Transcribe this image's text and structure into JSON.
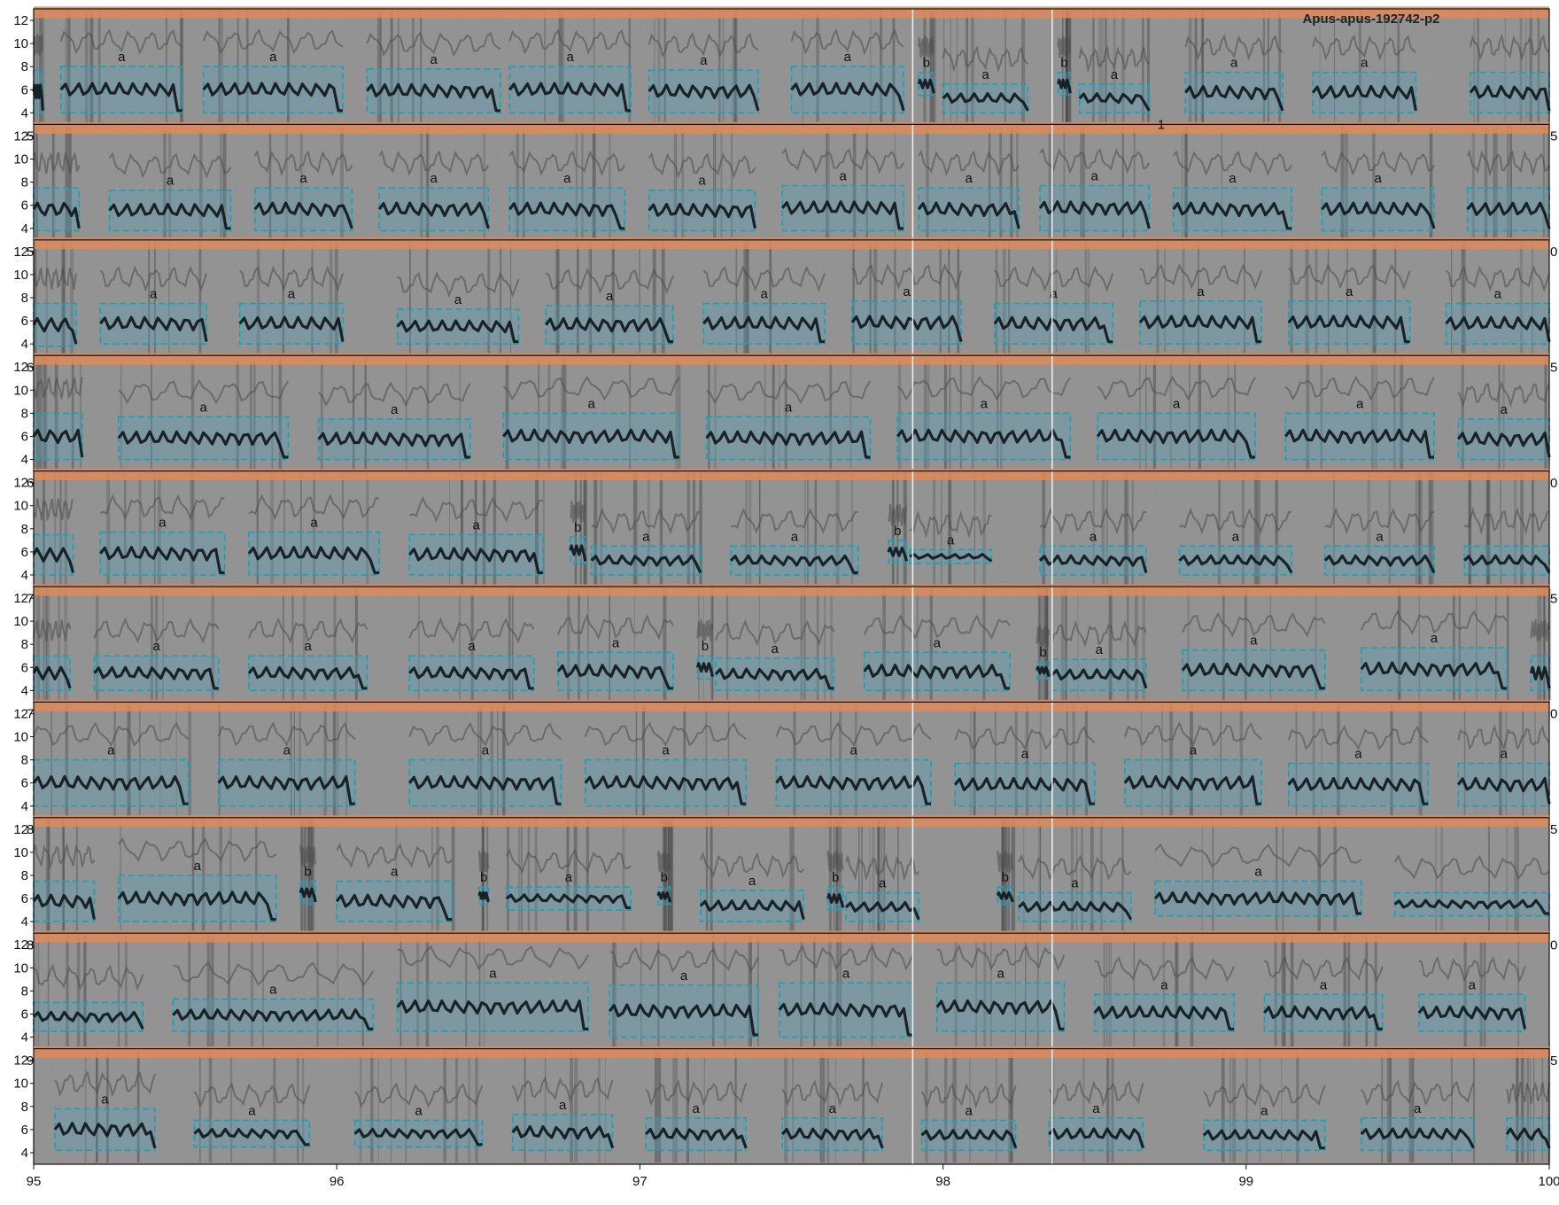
{
  "chart_data": {
    "type": "heatmap",
    "title": "Apus-apus-192742-p2",
    "x": {
      "label": "",
      "lim": [
        95,
        100
      ],
      "ticks": [
        95,
        96,
        97,
        98,
        99,
        100
      ]
    },
    "y": {
      "label": "",
      "lim": [
        3,
        13
      ],
      "ticks": [
        4,
        6,
        8,
        10,
        12
      ]
    },
    "rows": 10,
    "band": {
      "y_from": 12.2,
      "y_to": 13.2,
      "color": "#e08a58"
    },
    "colors": {
      "background": "#8f8f8f",
      "box": "#1aa0b4",
      "box_fill": "#49a7c4",
      "trace": "#0e1518",
      "band": "#e08a58"
    },
    "vlines": [
      97.9,
      98.36
    ],
    "row_edge_labels": [
      {
        "row": 1,
        "left": "5",
        "right": "5"
      },
      {
        "row": 2,
        "left": "5",
        "right": "0"
      },
      {
        "row": 3,
        "left": "6",
        "right": "5"
      },
      {
        "row": 4,
        "left": "6",
        "right": "0"
      },
      {
        "row": 5,
        "left": "7",
        "right": "5"
      },
      {
        "row": 6,
        "left": "7",
        "right": "0"
      },
      {
        "row": 7,
        "left": "8",
        "right": "5"
      },
      {
        "row": 8,
        "left": "8",
        "right": "0"
      },
      {
        "row": 9,
        "left": "9",
        "right": "5"
      }
    ],
    "marker": {
      "row": 1,
      "x": 98.72,
      "text": "1"
    },
    "segments": [
      {
        "row": 0,
        "label": "",
        "x0": 95.0,
        "x1": 95.03,
        "y0": 4.0,
        "y1": 7.7
      },
      {
        "row": 0,
        "label": "a",
        "x0": 95.09,
        "x1": 95.49,
        "y0": 4.0,
        "y1": 8.0
      },
      {
        "row": 0,
        "label": "a",
        "x0": 95.56,
        "x1": 96.02,
        "y0": 4.0,
        "y1": 8.0
      },
      {
        "row": 0,
        "label": "a",
        "x0": 96.1,
        "x1": 96.54,
        "y0": 4.0,
        "y1": 7.8
      },
      {
        "row": 0,
        "label": "a",
        "x0": 96.57,
        "x1": 96.97,
        "y0": 4.0,
        "y1": 8.0
      },
      {
        "row": 0,
        "label": "a",
        "x0": 97.03,
        "x1": 97.39,
        "y0": 4.0,
        "y1": 7.7
      },
      {
        "row": 0,
        "label": "a",
        "x0": 97.5,
        "x1": 97.87,
        "y0": 4.0,
        "y1": 8.0
      },
      {
        "row": 0,
        "label": "b",
        "x0": 97.92,
        "x1": 97.97,
        "y0": 5.5,
        "y1": 7.5
      },
      {
        "row": 0,
        "label": "a",
        "x0": 98.0,
        "x1": 98.28,
        "y0": 4.0,
        "y1": 6.5
      },
      {
        "row": 0,
        "label": "b",
        "x0": 98.38,
        "x1": 98.42,
        "y0": 5.5,
        "y1": 7.5
      },
      {
        "row": 0,
        "label": "a",
        "x0": 98.45,
        "x1": 98.68,
        "y0": 4.0,
        "y1": 6.5
      },
      {
        "row": 0,
        "label": "a",
        "x0": 98.8,
        "x1": 99.12,
        "y0": 4.0,
        "y1": 7.5
      },
      {
        "row": 0,
        "label": "a",
        "x0": 99.22,
        "x1": 99.56,
        "y0": 4.0,
        "y1": 7.5
      },
      {
        "row": 0,
        "label": "",
        "x0": 99.74,
        "x1": 100.0,
        "y0": 4.0,
        "y1": 7.5
      },
      {
        "row": 1,
        "label": "",
        "x0": 95.0,
        "x1": 95.15,
        "y0": 3.8,
        "y1": 7.5
      },
      {
        "row": 1,
        "label": "a",
        "x0": 95.25,
        "x1": 95.65,
        "y0": 3.8,
        "y1": 7.3
      },
      {
        "row": 1,
        "label": "a",
        "x0": 95.73,
        "x1": 96.05,
        "y0": 3.8,
        "y1": 7.5
      },
      {
        "row": 1,
        "label": "a",
        "x0": 96.14,
        "x1": 96.5,
        "y0": 3.8,
        "y1": 7.5
      },
      {
        "row": 1,
        "label": "a",
        "x0": 96.57,
        "x1": 96.95,
        "y0": 3.8,
        "y1": 7.5
      },
      {
        "row": 1,
        "label": "a",
        "x0": 97.03,
        "x1": 97.38,
        "y0": 3.8,
        "y1": 7.3
      },
      {
        "row": 1,
        "label": "a",
        "x0": 97.47,
        "x1": 97.87,
        "y0": 3.8,
        "y1": 7.7
      },
      {
        "row": 1,
        "label": "a",
        "x0": 97.92,
        "x1": 98.25,
        "y0": 3.8,
        "y1": 7.5
      },
      {
        "row": 1,
        "label": "a",
        "x0": 98.32,
        "x1": 98.68,
        "y0": 3.8,
        "y1": 7.7
      },
      {
        "row": 1,
        "label": "a",
        "x0": 98.76,
        "x1": 99.15,
        "y0": 3.8,
        "y1": 7.5
      },
      {
        "row": 1,
        "label": "a",
        "x0": 99.25,
        "x1": 99.62,
        "y0": 3.8,
        "y1": 7.5
      },
      {
        "row": 1,
        "label": "",
        "x0": 99.73,
        "x1": 100.0,
        "y0": 3.8,
        "y1": 7.5
      },
      {
        "row": 2,
        "label": "",
        "x0": 95.0,
        "x1": 95.14,
        "y0": 3.8,
        "y1": 7.5
      },
      {
        "row": 2,
        "label": "a",
        "x0": 95.22,
        "x1": 95.57,
        "y0": 4.0,
        "y1": 7.5
      },
      {
        "row": 2,
        "label": "a",
        "x0": 95.68,
        "x1": 96.02,
        "y0": 4.0,
        "y1": 7.5
      },
      {
        "row": 2,
        "label": "a",
        "x0": 96.2,
        "x1": 96.6,
        "y0": 4.0,
        "y1": 7.0
      },
      {
        "row": 2,
        "label": "a",
        "x0": 96.69,
        "x1": 97.11,
        "y0": 4.0,
        "y1": 7.3
      },
      {
        "row": 2,
        "label": "a",
        "x0": 97.21,
        "x1": 97.61,
        "y0": 4.0,
        "y1": 7.5
      },
      {
        "row": 2,
        "label": "a",
        "x0": 97.7,
        "x1": 98.06,
        "y0": 4.0,
        "y1": 7.7
      },
      {
        "row": 2,
        "label": "a",
        "x0": 98.17,
        "x1": 98.56,
        "y0": 4.0,
        "y1": 7.5
      },
      {
        "row": 2,
        "label": "a",
        "x0": 98.65,
        "x1": 99.05,
        "y0": 4.0,
        "y1": 7.7
      },
      {
        "row": 2,
        "label": "a",
        "x0": 99.14,
        "x1": 99.54,
        "y0": 4.0,
        "y1": 7.7
      },
      {
        "row": 2,
        "label": "a",
        "x0": 99.66,
        "x1": 100.0,
        "y0": 4.0,
        "y1": 7.5
      },
      {
        "row": 3,
        "label": "",
        "x0": 95.0,
        "x1": 95.16,
        "y0": 4.0,
        "y1": 8.0
      },
      {
        "row": 3,
        "label": "a",
        "x0": 95.28,
        "x1": 95.84,
        "y0": 4.0,
        "y1": 7.7
      },
      {
        "row": 3,
        "label": "a",
        "x0": 95.94,
        "x1": 96.44,
        "y0": 4.0,
        "y1": 7.5
      },
      {
        "row": 3,
        "label": "a",
        "x0": 96.55,
        "x1": 97.13,
        "y0": 4.0,
        "y1": 8.0
      },
      {
        "row": 3,
        "label": "a",
        "x0": 97.22,
        "x1": 97.76,
        "y0": 4.0,
        "y1": 7.7
      },
      {
        "row": 3,
        "label": "a",
        "x0": 97.85,
        "x1": 98.42,
        "y0": 4.0,
        "y1": 8.0
      },
      {
        "row": 3,
        "label": "a",
        "x0": 98.51,
        "x1": 99.03,
        "y0": 4.0,
        "y1": 8.0
      },
      {
        "row": 3,
        "label": "a",
        "x0": 99.13,
        "x1": 99.62,
        "y0": 4.0,
        "y1": 8.0
      },
      {
        "row": 3,
        "label": "a",
        "x0": 99.7,
        "x1": 100.0,
        "y0": 4.0,
        "y1": 7.5
      },
      {
        "row": 4,
        "label": "",
        "x0": 95.0,
        "x1": 95.13,
        "y0": 4.0,
        "y1": 7.5
      },
      {
        "row": 4,
        "label": "a",
        "x0": 95.22,
        "x1": 95.63,
        "y0": 4.0,
        "y1": 7.7
      },
      {
        "row": 4,
        "label": "a",
        "x0": 95.71,
        "x1": 96.14,
        "y0": 4.0,
        "y1": 7.7
      },
      {
        "row": 4,
        "label": "a",
        "x0": 96.24,
        "x1": 96.68,
        "y0": 4.0,
        "y1": 7.5
      },
      {
        "row": 4,
        "label": "b",
        "x0": 96.77,
        "x1": 96.82,
        "y0": 5.0,
        "y1": 7.3
      },
      {
        "row": 4,
        "label": "a",
        "x0": 96.84,
        "x1": 97.2,
        "y0": 4.0,
        "y1": 6.5
      },
      {
        "row": 4,
        "label": "a",
        "x0": 97.3,
        "x1": 97.72,
        "y0": 4.0,
        "y1": 6.5
      },
      {
        "row": 4,
        "label": "b",
        "x0": 97.82,
        "x1": 97.88,
        "y0": 5.0,
        "y1": 7.0
      },
      {
        "row": 4,
        "label": "a",
        "x0": 97.89,
        "x1": 98.16,
        "y0": 5.0,
        "y1": 6.2
      },
      {
        "row": 4,
        "label": "a",
        "x0": 98.32,
        "x1": 98.67,
        "y0": 4.0,
        "y1": 6.5
      },
      {
        "row": 4,
        "label": "a",
        "x0": 98.78,
        "x1": 99.15,
        "y0": 4.0,
        "y1": 6.5
      },
      {
        "row": 4,
        "label": "a",
        "x0": 99.26,
        "x1": 99.62,
        "y0": 4.0,
        "y1": 6.5
      },
      {
        "row": 4,
        "label": "",
        "x0": 99.72,
        "x1": 100.0,
        "y0": 4.0,
        "y1": 6.5
      },
      {
        "row": 5,
        "label": "",
        "x0": 95.0,
        "x1": 95.12,
        "y0": 4.0,
        "y1": 7.0
      },
      {
        "row": 5,
        "label": "a",
        "x0": 95.2,
        "x1": 95.61,
        "y0": 4.0,
        "y1": 7.0
      },
      {
        "row": 5,
        "label": "a",
        "x0": 95.71,
        "x1": 96.1,
        "y0": 4.0,
        "y1": 7.0
      },
      {
        "row": 5,
        "label": "a",
        "x0": 96.24,
        "x1": 96.65,
        "y0": 4.0,
        "y1": 7.0
      },
      {
        "row": 5,
        "label": "a",
        "x0": 96.73,
        "x1": 97.11,
        "y0": 4.0,
        "y1": 7.3
      },
      {
        "row": 5,
        "label": "b",
        "x0": 97.19,
        "x1": 97.24,
        "y0": 5.0,
        "y1": 7.0
      },
      {
        "row": 5,
        "label": "a",
        "x0": 97.25,
        "x1": 97.64,
        "y0": 4.0,
        "y1": 6.8
      },
      {
        "row": 5,
        "label": "a",
        "x0": 97.74,
        "x1": 98.22,
        "y0": 4.0,
        "y1": 7.3
      },
      {
        "row": 5,
        "label": "b",
        "x0": 98.31,
        "x1": 98.35,
        "y0": 5.0,
        "y1": 6.5
      },
      {
        "row": 5,
        "label": "a",
        "x0": 98.36,
        "x1": 98.67,
        "y0": 4.0,
        "y1": 6.7
      },
      {
        "row": 5,
        "label": "a",
        "x0": 98.79,
        "x1": 99.26,
        "y0": 4.0,
        "y1": 7.5
      },
      {
        "row": 5,
        "label": "a",
        "x0": 99.38,
        "x1": 99.86,
        "y0": 4.0,
        "y1": 7.7
      },
      {
        "row": 5,
        "label": "",
        "x0": 99.94,
        "x1": 100.0,
        "y0": 4.0,
        "y1": 7.0
      },
      {
        "row": 6,
        "label": "a",
        "x0": 95.0,
        "x1": 95.51,
        "y0": 4.0,
        "y1": 8.0
      },
      {
        "row": 6,
        "label": "a",
        "x0": 95.61,
        "x1": 96.06,
        "y0": 4.0,
        "y1": 8.0
      },
      {
        "row": 6,
        "label": "a",
        "x0": 96.24,
        "x1": 96.74,
        "y0": 4.0,
        "y1": 8.0
      },
      {
        "row": 6,
        "label": "a",
        "x0": 96.82,
        "x1": 97.35,
        "y0": 4.0,
        "y1": 8.0
      },
      {
        "row": 6,
        "label": "a",
        "x0": 97.45,
        "x1": 97.96,
        "y0": 4.0,
        "y1": 8.0
      },
      {
        "row": 6,
        "label": "a",
        "x0": 98.04,
        "x1": 98.5,
        "y0": 4.0,
        "y1": 7.7
      },
      {
        "row": 6,
        "label": "a",
        "x0": 98.6,
        "x1": 99.05,
        "y0": 4.0,
        "y1": 8.0
      },
      {
        "row": 6,
        "label": "a",
        "x0": 99.14,
        "x1": 99.6,
        "y0": 4.0,
        "y1": 7.7
      },
      {
        "row": 6,
        "label": "a",
        "x0": 99.7,
        "x1": 100.0,
        "y0": 4.0,
        "y1": 7.7
      },
      {
        "row": 7,
        "label": "",
        "x0": 95.0,
        "x1": 95.2,
        "y0": 4.0,
        "y1": 7.5
      },
      {
        "row": 7,
        "label": "a",
        "x0": 95.28,
        "x1": 95.8,
        "y0": 4.0,
        "y1": 8.0
      },
      {
        "row": 7,
        "label": "b",
        "x0": 95.88,
        "x1": 95.93,
        "y0": 5.5,
        "y1": 7.5
      },
      {
        "row": 7,
        "label": "a",
        "x0": 96.0,
        "x1": 96.38,
        "y0": 4.0,
        "y1": 7.5
      },
      {
        "row": 7,
        "label": "b",
        "x0": 96.47,
        "x1": 96.5,
        "y0": 5.5,
        "y1": 7.0
      },
      {
        "row": 7,
        "label": "a",
        "x0": 96.56,
        "x1": 96.97,
        "y0": 5.0,
        "y1": 7.0
      },
      {
        "row": 7,
        "label": "b",
        "x0": 97.06,
        "x1": 97.1,
        "y0": 5.5,
        "y1": 7.0
      },
      {
        "row": 7,
        "label": "a",
        "x0": 97.2,
        "x1": 97.54,
        "y0": 4.0,
        "y1": 6.7
      },
      {
        "row": 7,
        "label": "b",
        "x0": 97.62,
        "x1": 97.67,
        "y0": 5.0,
        "y1": 7.0
      },
      {
        "row": 7,
        "label": "a",
        "x0": 97.68,
        "x1": 97.92,
        "y0": 4.0,
        "y1": 6.5
      },
      {
        "row": 7,
        "label": "b",
        "x0": 98.18,
        "x1": 98.23,
        "y0": 5.5,
        "y1": 7.0
      },
      {
        "row": 7,
        "label": "a",
        "x0": 98.25,
        "x1": 98.62,
        "y0": 4.0,
        "y1": 6.5
      },
      {
        "row": 7,
        "label": "a",
        "x0": 98.7,
        "x1": 99.38,
        "y0": 4.5,
        "y1": 7.5
      },
      {
        "row": 7,
        "label": "",
        "x0": 99.49,
        "x1": 100.0,
        "y0": 4.5,
        "y1": 6.5
      },
      {
        "row": 8,
        "label": "",
        "x0": 95.0,
        "x1": 95.36,
        "y0": 4.5,
        "y1": 7.0
      },
      {
        "row": 8,
        "label": "a",
        "x0": 95.46,
        "x1": 96.12,
        "y0": 4.5,
        "y1": 7.3
      },
      {
        "row": 8,
        "label": "a",
        "x0": 96.2,
        "x1": 96.83,
        "y0": 4.5,
        "y1": 8.7
      },
      {
        "row": 8,
        "label": "a",
        "x0": 96.9,
        "x1": 97.39,
        "y0": 4.0,
        "y1": 8.5
      },
      {
        "row": 8,
        "label": "a",
        "x0": 97.46,
        "x1": 97.9,
        "y0": 4.0,
        "y1": 8.7
      },
      {
        "row": 8,
        "label": "a",
        "x0": 97.98,
        "x1": 98.4,
        "y0": 4.5,
        "y1": 8.7
      },
      {
        "row": 8,
        "label": "a",
        "x0": 98.5,
        "x1": 98.96,
        "y0": 4.5,
        "y1": 7.7
      },
      {
        "row": 8,
        "label": "a",
        "x0": 99.06,
        "x1": 99.45,
        "y0": 4.5,
        "y1": 7.7
      },
      {
        "row": 8,
        "label": "a",
        "x0": 99.57,
        "x1": 99.92,
        "y0": 4.5,
        "y1": 7.7
      },
      {
        "row": 9,
        "label": "a",
        "x0": 95.07,
        "x1": 95.4,
        "y0": 4.2,
        "y1": 7.8
      },
      {
        "row": 9,
        "label": "a",
        "x0": 95.53,
        "x1": 95.91,
        "y0": 4.5,
        "y1": 6.8
      },
      {
        "row": 9,
        "label": "a",
        "x0": 96.06,
        "x1": 96.48,
        "y0": 4.5,
        "y1": 6.8
      },
      {
        "row": 9,
        "label": "a",
        "x0": 96.58,
        "x1": 96.91,
        "y0": 4.2,
        "y1": 7.3
      },
      {
        "row": 9,
        "label": "a",
        "x0": 97.02,
        "x1": 97.35,
        "y0": 4.2,
        "y1": 7.0
      },
      {
        "row": 9,
        "label": "a",
        "x0": 97.47,
        "x1": 97.8,
        "y0": 4.2,
        "y1": 7.0
      },
      {
        "row": 9,
        "label": "a",
        "x0": 97.93,
        "x1": 98.24,
        "y0": 4.2,
        "y1": 6.8
      },
      {
        "row": 9,
        "label": "a",
        "x0": 98.35,
        "x1": 98.66,
        "y0": 4.2,
        "y1": 7.0
      },
      {
        "row": 9,
        "label": "a",
        "x0": 98.86,
        "x1": 99.26,
        "y0": 4.2,
        "y1": 6.8
      },
      {
        "row": 9,
        "label": "a",
        "x0": 99.38,
        "x1": 99.75,
        "y0": 4.2,
        "y1": 7.0
      },
      {
        "row": 9,
        "label": "",
        "x0": 99.86,
        "x1": 100.0,
        "y0": 4.2,
        "y1": 7.0
      }
    ]
  }
}
